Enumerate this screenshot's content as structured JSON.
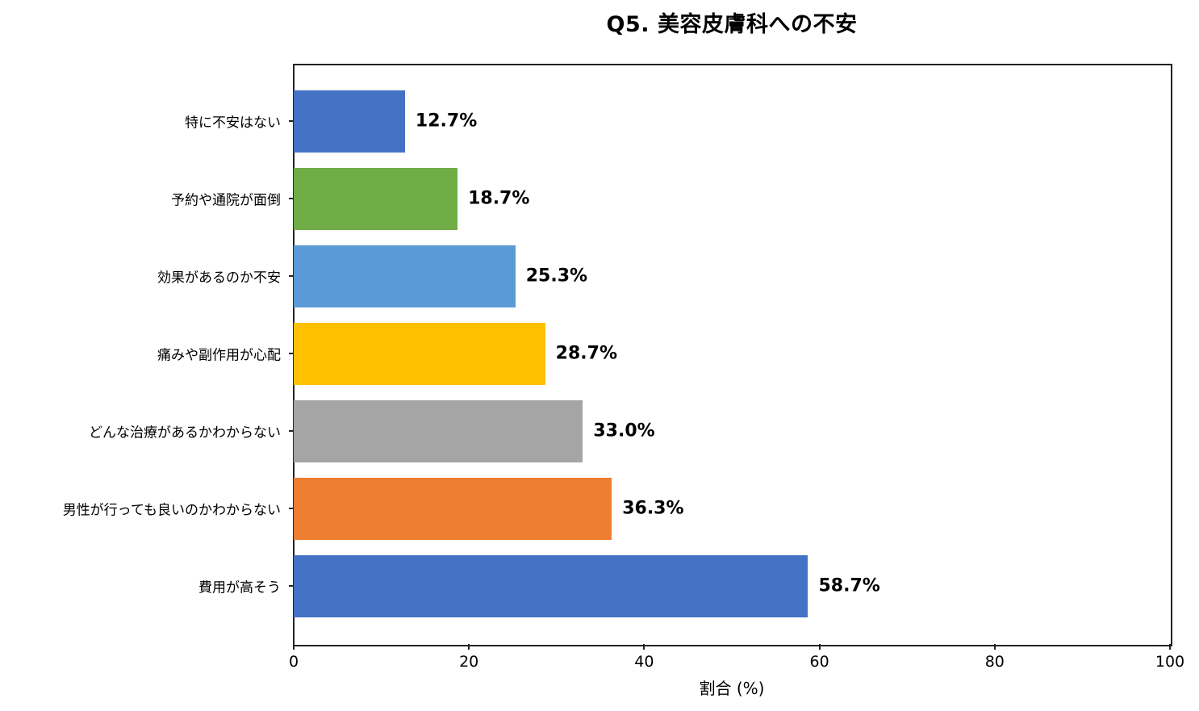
{
  "chart_data": {
    "type": "bar",
    "orientation": "horizontal",
    "title": "Q5. 美容皮膚科への不安",
    "xlabel": "割合 (%)",
    "ylabel": "",
    "xlim": [
      0,
      100
    ],
    "xticks": [
      "0",
      "20",
      "40",
      "60",
      "80",
      "100"
    ],
    "grid": false,
    "legend": null,
    "categories": [
      "特に不安はない",
      "予約や通院が面倒",
      "効果があるのか不安",
      "痛みや副作用が心配",
      "どんな治療があるかわからない",
      "男性が行っても良いのかわからない",
      "費用が高そう"
    ],
    "values": [
      12.7,
      18.7,
      25.3,
      28.7,
      33.0,
      36.3,
      58.7
    ],
    "value_labels": [
      "12.7%",
      "18.7%",
      "25.3%",
      "28.7%",
      "33.0%",
      "36.3%",
      "58.7%"
    ],
    "colors": [
      "#4472C4",
      "#70AD47",
      "#5B9BD5",
      "#FFC000",
      "#A5A5A5",
      "#ED7D31",
      "#4472C4"
    ]
  }
}
